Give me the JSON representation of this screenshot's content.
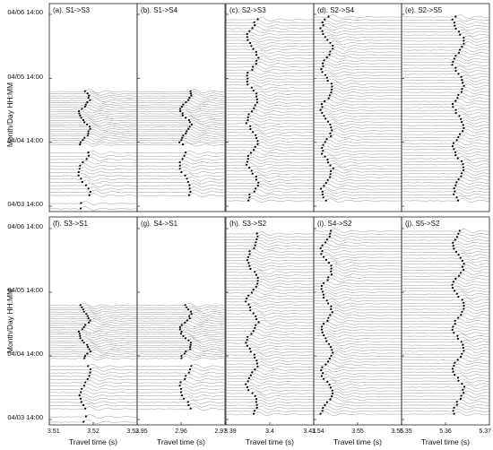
{
  "figure": {
    "ylabel": "Month/Day HH:MM",
    "xlabel": "Travel time (s)",
    "y_ticks": [
      "04/06 14:00",
      "04/05 14:00",
      "04/04 14:00",
      "04/03 14:00"
    ]
  },
  "chart_data": [
    {
      "type": "line",
      "title": "(a). S1->S3",
      "x_ticks": [],
      "xlim": [
        3.51,
        3.53
      ],
      "pick_x": 3.518,
      "trace_groups": [
        {
          "from": "04/05 09:00",
          "to": "04/04 13:00",
          "n": 25
        },
        {
          "from": "04/04 10:00",
          "to": "04/03 18:00",
          "n": 14
        },
        {
          "from": "04/03 15:00",
          "to": "04/03 13:00",
          "n": 2
        }
      ]
    },
    {
      "type": "line",
      "title": "(b). S1->S4",
      "x_ticks": [],
      "xlim": [
        2.95,
        2.97
      ],
      "pick_x": 2.961,
      "trace_groups": [
        {
          "from": "04/05 09:00",
          "to": "04/04 13:00",
          "n": 25
        },
        {
          "from": "04/04 10:00",
          "to": "04/03 18:00",
          "n": 14
        }
      ]
    },
    {
      "type": "line",
      "title": "(c). S2->S3",
      "x_ticks": [],
      "xlim": [
        3.39,
        3.41
      ],
      "pick_x": 3.396,
      "trace_groups": [
        {
          "from": "04/06 12:00",
          "to": "04/03 16:00",
          "n": 62
        }
      ]
    },
    {
      "type": "line",
      "title": "(d). S2->S4",
      "x_ticks": [],
      "xlim": [
        3.54,
        3.56
      ],
      "pick_x": 3.543,
      "trace_groups": [
        {
          "from": "04/06 13:00",
          "to": "04/03 16:00",
          "n": 64
        }
      ]
    },
    {
      "type": "line",
      "title": "(e). S2->S5",
      "x_ticks": [],
      "xlim": [
        5.35,
        5.37
      ],
      "pick_x": 5.363,
      "trace_groups": [
        {
          "from": "04/06 13:00",
          "to": "04/03 16:00",
          "n": 62
        }
      ]
    },
    {
      "type": "line",
      "title": "(f). S3->S1",
      "x_ticks": [
        "3.51",
        "3.52",
        "3.53"
      ],
      "xlim": [
        3.51,
        3.53
      ],
      "pick_x": 3.518,
      "trace_groups": [
        {
          "from": "04/05 09:00",
          "to": "04/04 13:00",
          "n": 25
        },
        {
          "from": "04/04 10:00",
          "to": "04/03 18:00",
          "n": 14
        },
        {
          "from": "04/03 15:00",
          "to": "04/03 13:00",
          "n": 2
        }
      ]
    },
    {
      "type": "line",
      "title": "(g). S4->S1",
      "x_ticks": [
        "2.95",
        "2.96",
        "2.97"
      ],
      "xlim": [
        2.95,
        2.97
      ],
      "pick_x": 2.961,
      "trace_groups": [
        {
          "from": "04/05 09:00",
          "to": "04/04 13:00",
          "n": 25
        },
        {
          "from": "04/04 10:00",
          "to": "04/03 18:00",
          "n": 14
        }
      ]
    },
    {
      "type": "line",
      "title": "(h). S3->S2",
      "x_ticks": [
        "3.39",
        "3.4",
        "3.41"
      ],
      "xlim": [
        3.39,
        3.41
      ],
      "pick_x": 3.396,
      "trace_groups": [
        {
          "from": "04/06 12:00",
          "to": "04/03 16:00",
          "n": 62
        }
      ]
    },
    {
      "type": "line",
      "title": "(i). S4->S2",
      "x_ticks": [
        "3.54",
        "3.55",
        "3.56"
      ],
      "xlim": [
        3.54,
        3.56
      ],
      "pick_x": 3.543,
      "trace_groups": [
        {
          "from": "04/06 13:00",
          "to": "04/03 16:00",
          "n": 64
        }
      ]
    },
    {
      "type": "line",
      "title": "(j). S5->S2",
      "x_ticks": [
        "5.35",
        "5.36",
        "5.37"
      ],
      "xlim": [
        5.35,
        5.37
      ],
      "pick_x": 5.363,
      "trace_groups": [
        {
          "from": "04/06 13:00",
          "to": "04/03 16:00",
          "n": 62
        }
      ]
    }
  ]
}
